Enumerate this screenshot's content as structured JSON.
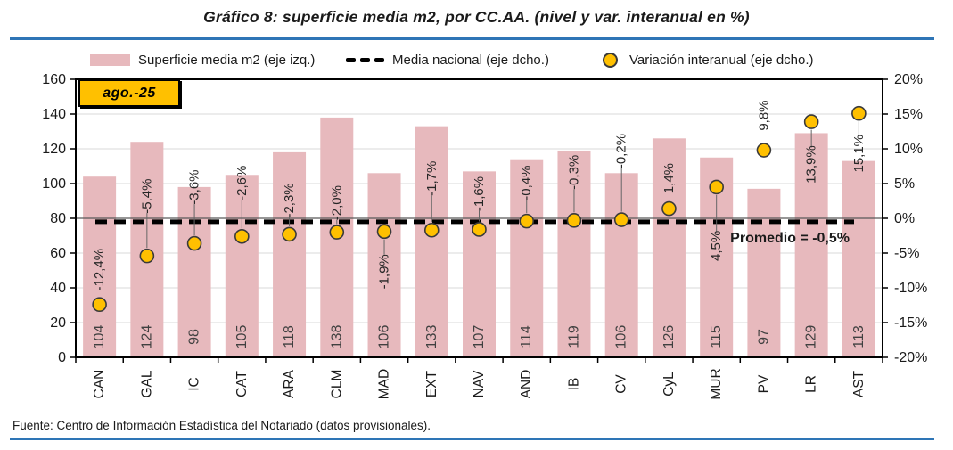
{
  "title": "Gráfico 8: superficie media m2, por CC.AA. (nivel y var. interanual en %)",
  "date_badge": "ago.-25",
  "legend": {
    "items": [
      {
        "icon": "bar-swatch",
        "label": "Superficie media m2 (eje izq.)"
      },
      {
        "icon": "dashed-line-swatch",
        "label": "Media nacional (eje dcho.)"
      },
      {
        "icon": "dot-swatch",
        "label": "Variación interanual (eje dcho.)"
      }
    ]
  },
  "footer": {
    "source": "Fuente: Centro de Información Estadística del Notariado (datos provisionales)."
  },
  "colors": {
    "bar": "#E7B9BD",
    "dot": "#FFC000",
    "dot_stroke": "#3a3a3a",
    "mean_line": "#000000",
    "rule": "#2E75B6",
    "grid": "#D9D9D9",
    "axis": "#000000",
    "zero_line": "#595959",
    "leader_line": "#666666",
    "bar_label_text": "#404040",
    "point_label_text": "#262626"
  },
  "chart_data": {
    "type": "bar",
    "title": "Gráfico 8: superficie media m2, por CC.AA. (nivel y var. interanual en %)",
    "categories": [
      "CAN",
      "GAL",
      "IC",
      "CAT",
      "ARA",
      "CLM",
      "MAD",
      "EXT",
      "NAV",
      "AND",
      "IB",
      "CV",
      "CyL",
      "MUR",
      "PV",
      "LR",
      "AST"
    ],
    "series": [
      {
        "name": "Superficie media m2 (eje izq.)",
        "type": "bar",
        "axis": "left",
        "values": [
          104,
          124,
          98,
          105,
          118,
          138,
          106,
          133,
          107,
          114,
          119,
          106,
          126,
          115,
          97,
          129,
          113
        ]
      },
      {
        "name": "Variación interanual (eje dcho.)",
        "type": "scatter",
        "axis": "right",
        "values": [
          -12.4,
          -5.4,
          -3.6,
          -2.6,
          -2.3,
          -2.0,
          -1.9,
          -1.7,
          -1.6,
          -0.4,
          -0.3,
          -0.2,
          1.4,
          4.5,
          9.8,
          13.9,
          15.1
        ],
        "labels": [
          "-12,4%",
          "-5,4%",
          "-3,6%",
          "-2,6%",
          "-2,3%",
          "-2,0%",
          "-1,9%",
          "-1,7%",
          "-1,6%",
          "-0,4%",
          "-0,3%",
          "-0,2%",
          "1,4%",
          "4,5%",
          "9,8%",
          "13,9%",
          "15,1%"
        ]
      },
      {
        "name": "Media nacional (eje dcho.)",
        "type": "line-dashed",
        "axis": "right",
        "value": -0.5,
        "annotation": "Promedio = -0,5%"
      }
    ],
    "left_axis": {
      "min": 0,
      "max": 160,
      "step": 20,
      "tick_labels": [
        "0",
        "20",
        "40",
        "60",
        "80",
        "100",
        "120",
        "140",
        "160"
      ]
    },
    "right_axis": {
      "min": -20,
      "max": 20,
      "step": 5,
      "tick_labels": [
        "-20%",
        "-15%",
        "-10%",
        "-5%",
        "0%",
        "5%",
        "10%",
        "15%",
        "20%"
      ]
    },
    "layout_hints": {
      "legend_position": "top",
      "grid": "horizontal",
      "point_label_dy": [
        -39,
        -67,
        -63,
        -60,
        -38,
        -33,
        45,
        -58,
        -40,
        -43,
        -54,
        -77,
        -34,
        66,
        -39,
        48,
        45
      ],
      "point_label_line": [
        false,
        true,
        true,
        true,
        true,
        true,
        true,
        true,
        true,
        true,
        true,
        true,
        false,
        true,
        false,
        true,
        true
      ]
    }
  }
}
